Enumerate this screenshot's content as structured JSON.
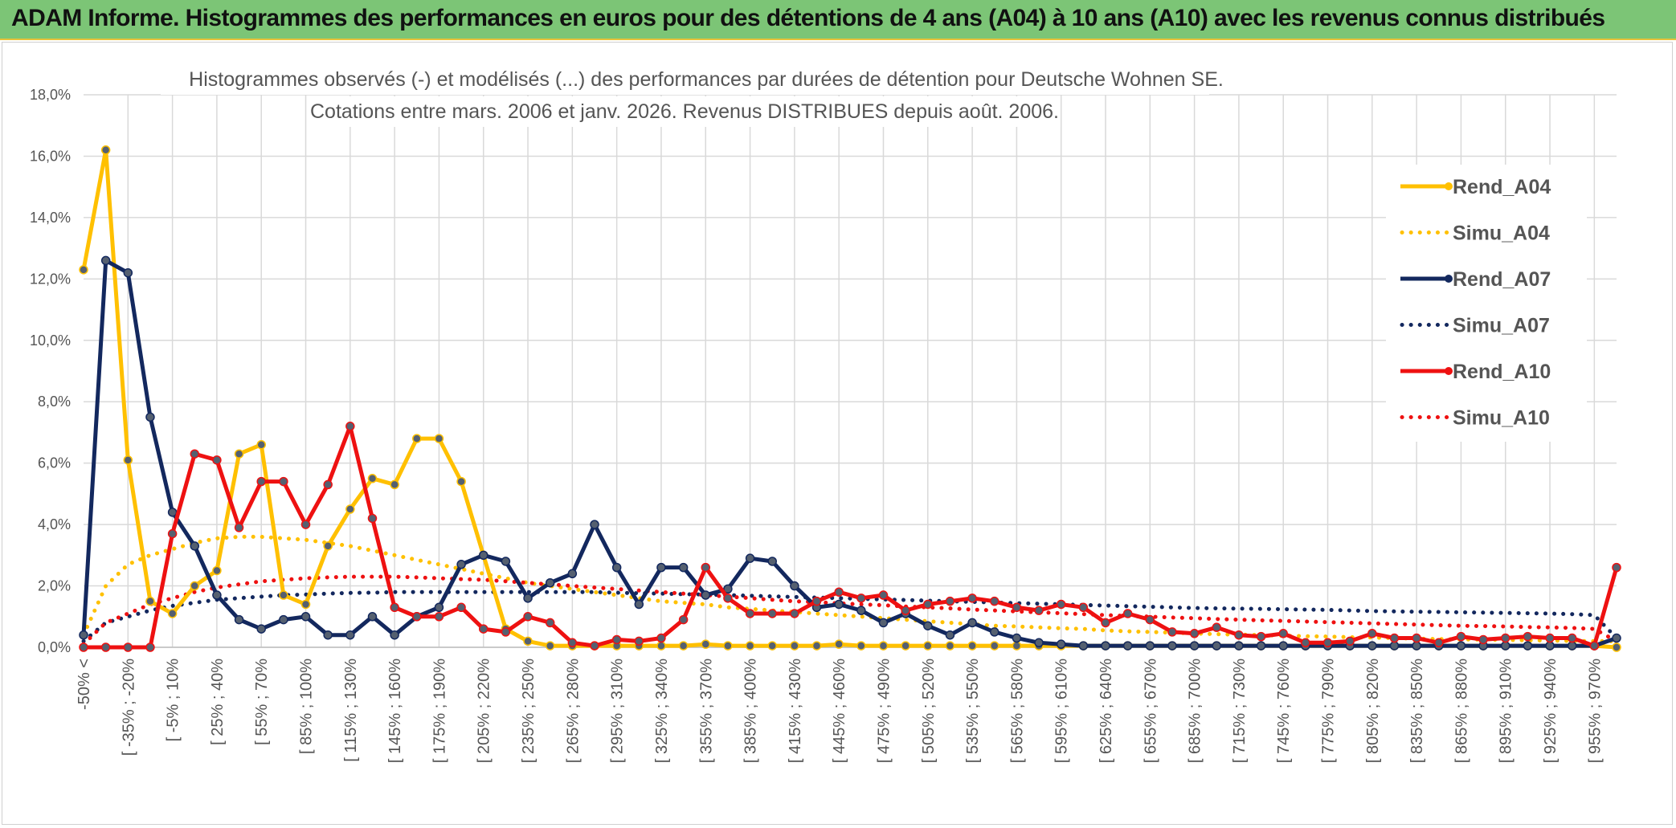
{
  "header": {
    "title": "ADAM Informe. Histogrammes des performances en euros pour des détentions de 4 ans (A04) à 10 ans (A10) avec les revenus connus distribués"
  },
  "chart_data": {
    "type": "line",
    "title_line1": "Histogrammes observés (-) et modélisés (...) des performances par durées de détention pour Deutsche Wohnen SE.",
    "title_line2": "Cotations entre mars. 2006 et janv. 2026. Revenus DISTRIBUES depuis août. 2006.",
    "xlabel": "",
    "ylabel": "",
    "ylim": [
      0,
      18
    ],
    "y_ticks": [
      "0,0%",
      "2,0%",
      "4,0%",
      "6,0%",
      "8,0%",
      "10,0%",
      "12,0%",
      "14,0%",
      "16,0%",
      "18,0%"
    ],
    "x_tick_labels": [
      "-50% <",
      "[ -35% ; -20%",
      "[ -5% ; 10%",
      "[ 25% ; 40%",
      "[ 55% ; 70%",
      "[ 85% ; 100%",
      "[ 115% ; 130%",
      "[ 145% ; 160%",
      "[ 175% ; 190%",
      "[ 205% ; 220%",
      "[ 235% ; 250%",
      "[ 265% ; 280%",
      "[ 295% ; 310%",
      "[ 325% ; 340%",
      "[ 355% ; 370%",
      "[ 385% ; 400%",
      "[ 415% ; 430%",
      "[ 445% ; 460%",
      "[ 475% ; 490%",
      "[ 505% ; 520%",
      "[ 535% ; 550%",
      "[ 565% ; 580%",
      "[ 595% ; 610%",
      "[ 625% ; 640%",
      "[ 655% ; 670%",
      "[ 685% ; 700%",
      "[ 715% ; 730%",
      "[ 745% ; 760%",
      "[ 775% ; 790%",
      "[ 805% ; 820%",
      "[ 835% ; 850%",
      "[ 865% ; 880%",
      "[ 895% ; 910%",
      "[ 925% ; 940%",
      "[ 955% ; 970%"
    ],
    "n_bins": 70,
    "series": [
      {
        "name": "Rend_A04",
        "style": "solid",
        "color": "#ffc000",
        "values": [
          12.3,
          16.2,
          6.1,
          1.5,
          1.1,
          2.0,
          2.5,
          6.3,
          6.6,
          1.7,
          1.4,
          3.3,
          4.5,
          5.5,
          5.3,
          6.8,
          6.8,
          5.4,
          3.0,
          0.6,
          0.2,
          0.05,
          0.05,
          0.05,
          0.05,
          0.05,
          0.05,
          0.05,
          0.1,
          0.05,
          0.05,
          0.05,
          0.05,
          0.05,
          0.1,
          0.05,
          0.05,
          0.05,
          0.05,
          0.05,
          0.05,
          0.05,
          0.05,
          0.05,
          0.05,
          0.05,
          0.05,
          0.05,
          0.05,
          0.05,
          0.05,
          0.05,
          0.05,
          0.05,
          0.05,
          0.05,
          0.05,
          0.05,
          0.05,
          0.05,
          0.05,
          0.05,
          0.05,
          0.05,
          0.05,
          0.05,
          0.05,
          0.05,
          0.05,
          0.0
        ]
      },
      {
        "name": "Simu_A04",
        "style": "dotted",
        "color": "#ffc000",
        "values": [
          0.4,
          2.0,
          2.7,
          3.0,
          3.2,
          3.4,
          3.55,
          3.6,
          3.6,
          3.55,
          3.5,
          3.4,
          3.3,
          3.15,
          3.0,
          2.85,
          2.7,
          2.55,
          2.4,
          2.25,
          2.1,
          2.0,
          1.9,
          1.8,
          1.7,
          1.6,
          1.5,
          1.45,
          1.4,
          1.3,
          1.25,
          1.2,
          1.15,
          1.1,
          1.05,
          1.0,
          0.95,
          0.9,
          0.85,
          0.8,
          0.75,
          0.7,
          0.68,
          0.65,
          0.62,
          0.6,
          0.55,
          0.52,
          0.5,
          0.48,
          0.45,
          0.43,
          0.41,
          0.4,
          0.38,
          0.36,
          0.35,
          0.33,
          0.32,
          0.3,
          0.28,
          0.27,
          0.26,
          0.25,
          0.24,
          0.23,
          0.22,
          0.21,
          0.2,
          0.2
        ]
      },
      {
        "name": "Rend_A07",
        "style": "solid",
        "color": "#13285e",
        "values": [
          0.4,
          12.6,
          12.2,
          7.5,
          4.4,
          3.3,
          1.7,
          0.9,
          0.6,
          0.9,
          1.0,
          0.4,
          0.4,
          1.0,
          0.4,
          1.0,
          1.3,
          2.7,
          3.0,
          2.8,
          1.6,
          2.1,
          2.4,
          4.0,
          2.6,
          1.4,
          2.6,
          2.6,
          1.7,
          1.9,
          2.9,
          2.8,
          2.0,
          1.3,
          1.4,
          1.2,
          0.8,
          1.1,
          0.7,
          0.4,
          0.8,
          0.5,
          0.3,
          0.15,
          0.1,
          0.05,
          0.05,
          0.05,
          0.05,
          0.05,
          0.05,
          0.05,
          0.05,
          0.05,
          0.05,
          0.05,
          0.05,
          0.05,
          0.05,
          0.05,
          0.05,
          0.05,
          0.05,
          0.05,
          0.05,
          0.05,
          0.05,
          0.05,
          0.05,
          0.3
        ]
      },
      {
        "name": "Simu_A07",
        "style": "dotted",
        "color": "#13285e",
        "values": [
          0.2,
          0.8,
          1.0,
          1.2,
          1.35,
          1.45,
          1.55,
          1.6,
          1.65,
          1.7,
          1.72,
          1.75,
          1.77,
          1.78,
          1.8,
          1.8,
          1.8,
          1.8,
          1.8,
          1.8,
          1.8,
          1.8,
          1.8,
          1.8,
          1.78,
          1.76,
          1.75,
          1.73,
          1.72,
          1.7,
          1.68,
          1.66,
          1.64,
          1.62,
          1.6,
          1.58,
          1.56,
          1.54,
          1.52,
          1.5,
          1.48,
          1.46,
          1.44,
          1.42,
          1.4,
          1.38,
          1.36,
          1.34,
          1.32,
          1.3,
          1.28,
          1.27,
          1.26,
          1.25,
          1.24,
          1.23,
          1.22,
          1.2,
          1.18,
          1.17,
          1.16,
          1.15,
          1.14,
          1.13,
          1.12,
          1.11,
          1.1,
          1.08,
          1.05,
          0.3
        ]
      },
      {
        "name": "Rend_A10",
        "style": "solid",
        "color": "#ee1111",
        "values": [
          0.0,
          0.0,
          0.0,
          0.0,
          3.7,
          6.3,
          6.1,
          3.9,
          5.4,
          5.4,
          4.0,
          5.3,
          7.2,
          4.2,
          1.3,
          1.0,
          1.0,
          1.3,
          0.6,
          0.5,
          1.0,
          0.8,
          0.15,
          0.05,
          0.25,
          0.2,
          0.3,
          0.9,
          2.6,
          1.6,
          1.1,
          1.1,
          1.1,
          1.5,
          1.8,
          1.6,
          1.7,
          1.2,
          1.4,
          1.5,
          1.6,
          1.5,
          1.3,
          1.2,
          1.4,
          1.3,
          0.8,
          1.1,
          0.9,
          0.5,
          0.45,
          0.65,
          0.4,
          0.35,
          0.45,
          0.15,
          0.15,
          0.2,
          0.45,
          0.3,
          0.3,
          0.15,
          0.35,
          0.25,
          0.3,
          0.35,
          0.3,
          0.3,
          0.05,
          2.6
        ]
      },
      {
        "name": "Simu_A10",
        "style": "dotted",
        "color": "#ee1111",
        "values": [
          0.1,
          0.8,
          1.1,
          1.4,
          1.6,
          1.8,
          1.95,
          2.05,
          2.15,
          2.2,
          2.25,
          2.28,
          2.3,
          2.3,
          2.3,
          2.28,
          2.25,
          2.22,
          2.2,
          2.15,
          2.1,
          2.05,
          2.0,
          1.95,
          1.9,
          1.85,
          1.8,
          1.75,
          1.7,
          1.65,
          1.6,
          1.55,
          1.5,
          1.47,
          1.43,
          1.4,
          1.37,
          1.33,
          1.3,
          1.27,
          1.23,
          1.2,
          1.17,
          1.14,
          1.11,
          1.08,
          1.05,
          1.02,
          1.0,
          0.97,
          0.95,
          0.92,
          0.9,
          0.88,
          0.86,
          0.84,
          0.82,
          0.8,
          0.78,
          0.76,
          0.74,
          0.72,
          0.7,
          0.69,
          0.68,
          0.66,
          0.65,
          0.63,
          0.6,
          0.2
        ]
      }
    ],
    "legend_position": "right"
  }
}
